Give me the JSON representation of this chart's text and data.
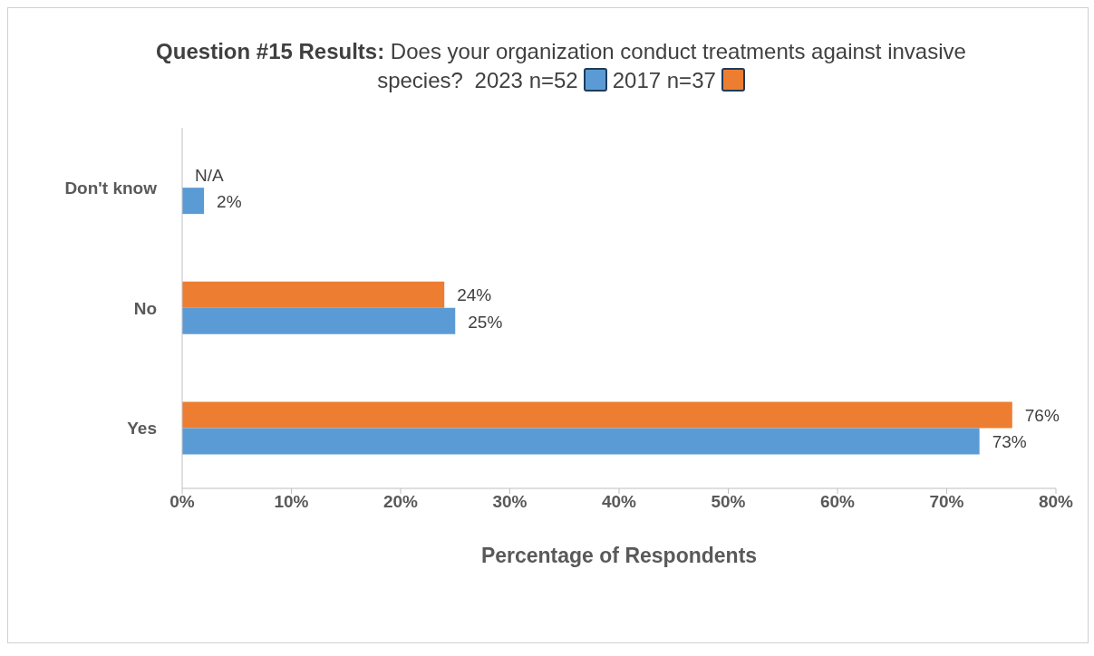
{
  "chart_data": {
    "type": "bar",
    "orientation": "horizontal",
    "title": "Question #15 Results:",
    "subtitle": "Does your organization conduct treatments against invasive species?",
    "xlabel": "Percentage of Respondents",
    "categories": [
      "Don't know",
      "No",
      "Yes"
    ],
    "series": [
      {
        "name": "2023 n=52",
        "color": "#5b9bd5",
        "values": [
          2,
          25,
          73
        ],
        "value_labels": [
          "2%",
          "25%",
          "73%"
        ]
      },
      {
        "name": "2017 n=37",
        "color": "#ed7d31",
        "values": [
          null,
          24,
          76
        ],
        "value_labels": [
          "N/A",
          "24%",
          "76%"
        ]
      }
    ],
    "xlim": [
      0,
      80
    ],
    "xticks": [
      {
        "value": 0,
        "label": "0%"
      },
      {
        "value": 10,
        "label": "10%"
      },
      {
        "value": 20,
        "label": "20%"
      },
      {
        "value": 30,
        "label": "30%"
      },
      {
        "value": 40,
        "label": "40%"
      },
      {
        "value": 50,
        "label": "50%"
      },
      {
        "value": 60,
        "label": "60%"
      },
      {
        "value": 70,
        "label": "70%"
      },
      {
        "value": 80,
        "label": "80%"
      }
    ],
    "grid": false,
    "legend": "top"
  }
}
